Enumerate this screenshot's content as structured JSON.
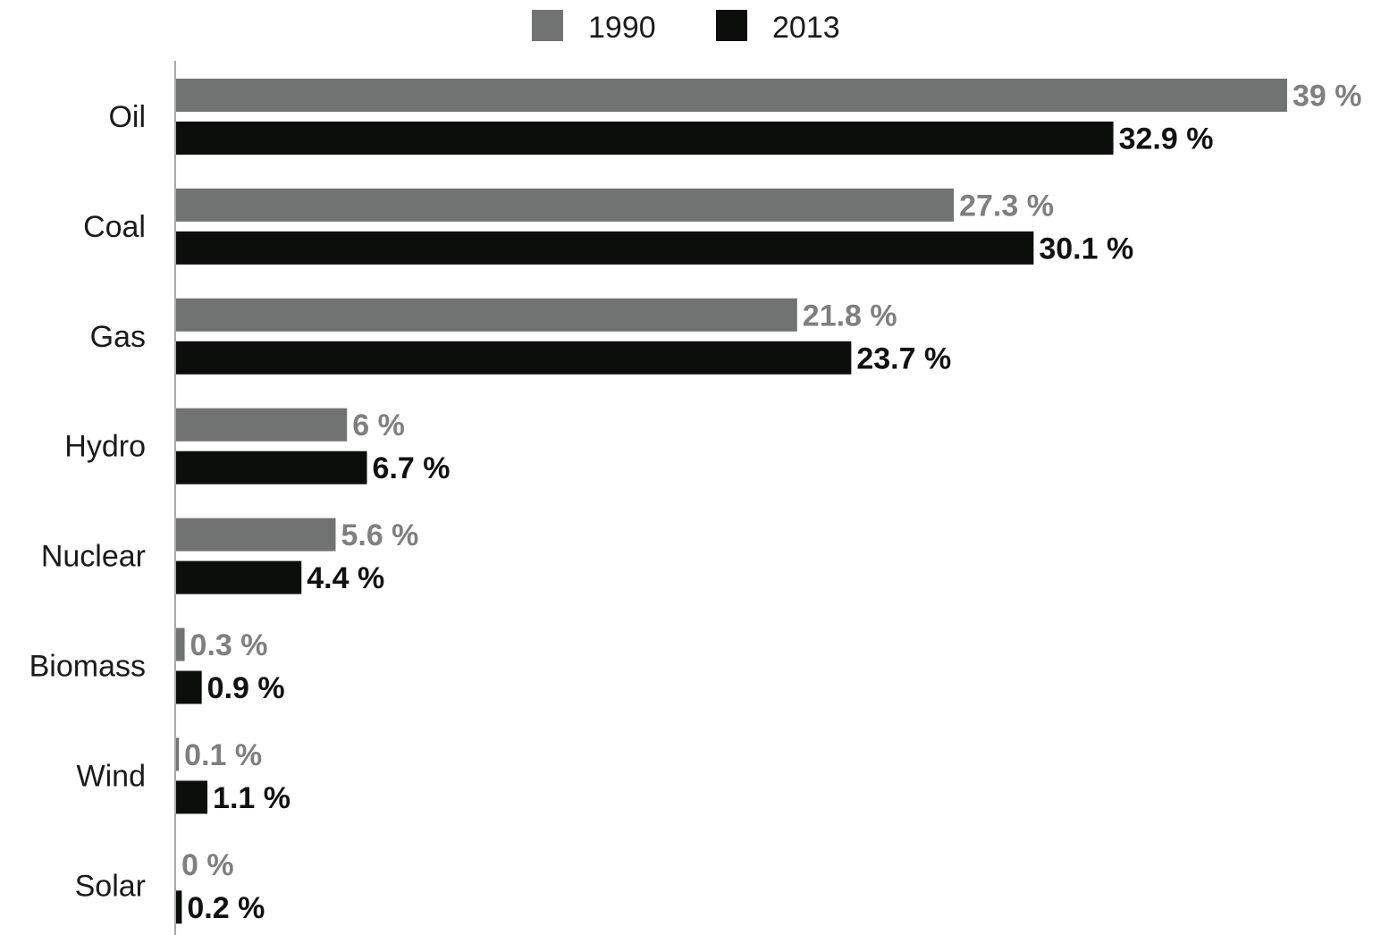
{
  "chart_data": {
    "type": "bar",
    "orientation": "horizontal",
    "categories": [
      "Oil",
      "Coal",
      "Gas",
      "Hydro",
      "Nuclear",
      "Biomass",
      "Wind",
      "Solar"
    ],
    "series": [
      {
        "name": "1990",
        "color": "#707372",
        "label_color": "#7f7f7f",
        "values": [
          39,
          27.3,
          21.8,
          6,
          5.6,
          0.3,
          0.1,
          0
        ],
        "labels": [
          "39 %",
          "27.3 %",
          "21.8 %",
          "6 %",
          "5.6 %",
          "0.3 %",
          "0.1 %",
          "0 %"
        ]
      },
      {
        "name": "2013",
        "color": "#0c0e0c",
        "label_color": "#111111",
        "values": [
          32.9,
          30.1,
          23.7,
          6.7,
          4.4,
          0.9,
          1.1,
          0.2
        ],
        "labels": [
          "32.9 %",
          "30.1 %",
          "23.7 %",
          "6.7 %",
          "4.4 %",
          "0.9 %",
          "1.1 %",
          "0.2 %"
        ]
      }
    ],
    "legend_position": "top",
    "grid": false,
    "xlim": [
      0,
      39
    ],
    "title": "",
    "xlabel": "",
    "ylabel": ""
  }
}
